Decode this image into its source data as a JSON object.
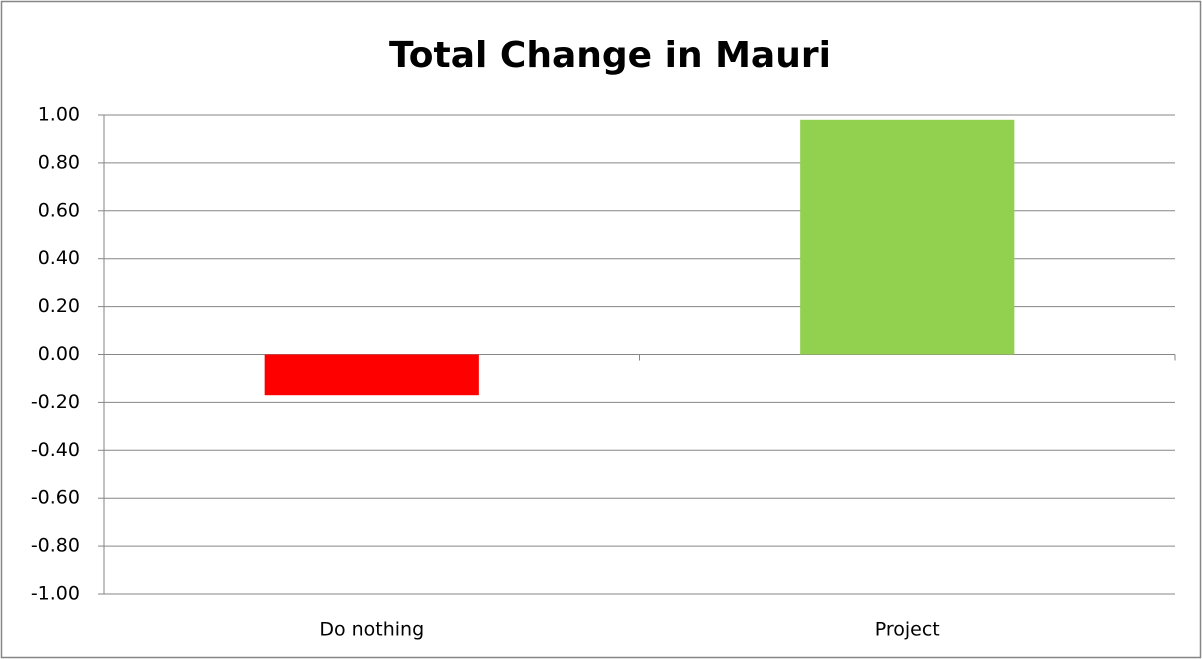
{
  "chart_data": {
    "type": "bar",
    "title": "Total Change in Mauri",
    "categories": [
      "Do nothing",
      "Project"
    ],
    "values": [
      -0.17,
      0.98
    ],
    "colors": [
      "#ff0000",
      "#92d050"
    ],
    "ylim": [
      -1,
      1
    ],
    "yticks": [
      {
        "value": -1,
        "label": "-1.00"
      },
      {
        "value": -0.8,
        "label": "-0.80"
      },
      {
        "value": -0.6,
        "label": "-0.60"
      },
      {
        "value": -0.4,
        "label": "-0.40"
      },
      {
        "value": -0.2,
        "label": "-0.20"
      },
      {
        "value": 0,
        "label": "0.00"
      },
      {
        "value": 0.2,
        "label": "0.20"
      },
      {
        "value": 0.4,
        "label": "0.40"
      },
      {
        "value": 0.6,
        "label": "0.60"
      },
      {
        "value": 0.8,
        "label": "0.80"
      },
      {
        "value": 1,
        "label": "1.00"
      }
    ],
    "grid": true
  }
}
